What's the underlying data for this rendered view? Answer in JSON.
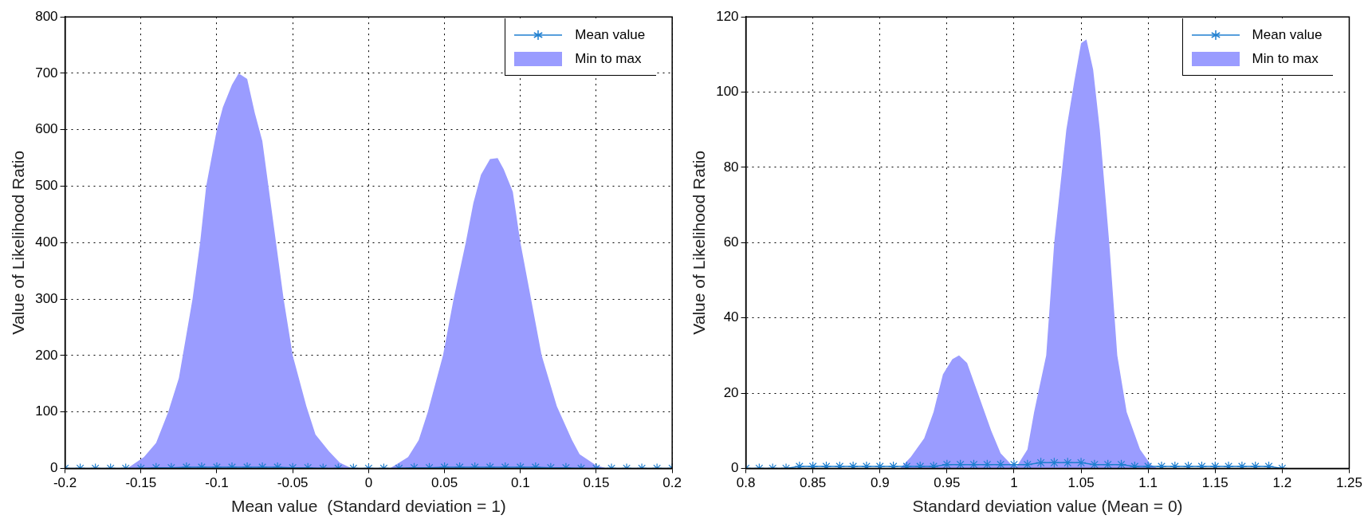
{
  "chart_data": [
    {
      "type": "line",
      "xlabel": "Mean value  (Standard deviation = 1)",
      "ylabel": "Value of Likelihood Ratio",
      "xlim": [
        -0.2,
        0.2
      ],
      "xticks": [
        -0.2,
        -0.15,
        -0.1,
        -0.05,
        0,
        0.05,
        0.1,
        0.15,
        0.2
      ],
      "ylim": [
        0,
        800
      ],
      "yticks": [
        0,
        100,
        200,
        300,
        400,
        500,
        600,
        700,
        800
      ],
      "grid": true,
      "legend": "top right",
      "series": [
        {
          "name": "Mean value",
          "type": "line",
          "marker": "cross",
          "color": "#1f7fd0",
          "x": [
            -0.2,
            -0.19,
            -0.18,
            -0.17,
            -0.16,
            -0.15,
            -0.14,
            -0.13,
            -0.12,
            -0.11,
            -0.1,
            -0.09,
            -0.08,
            -0.07,
            -0.06,
            -0.05,
            -0.04,
            -0.03,
            -0.02,
            -0.01,
            0,
            0.01,
            0.02,
            0.03,
            0.04,
            0.05,
            0.06,
            0.07,
            0.08,
            0.09,
            0.1,
            0.11,
            0.12,
            0.13,
            0.14,
            0.15,
            0.16,
            0.17,
            0.18,
            0.19,
            0.2
          ],
          "values": [
            0,
            0,
            0,
            0,
            0,
            0,
            1,
            1,
            2,
            2,
            2,
            2,
            2,
            2,
            2,
            1,
            1,
            0,
            0,
            0,
            0,
            0,
            0,
            1,
            1,
            2,
            2,
            2,
            2,
            2,
            2,
            2,
            1,
            1,
            0,
            0,
            0,
            0,
            0,
            0,
            0
          ]
        },
        {
          "name": "Min to max",
          "type": "area",
          "color": "#9a9cff",
          "x": [
            -0.2,
            -0.159,
            -0.148,
            -0.14,
            -0.132,
            -0.125,
            -0.116,
            -0.111,
            -0.107,
            -0.1,
            -0.096,
            -0.09,
            -0.0856,
            -0.08,
            -0.075,
            -0.07,
            -0.066,
            -0.061,
            -0.056,
            -0.05,
            -0.041,
            -0.035,
            -0.026,
            -0.019,
            -0.011,
            0.014,
            0.026,
            0.033,
            0.039,
            0.049,
            0.056,
            0.064,
            0.069,
            0.074,
            0.08,
            0.085,
            0.089,
            0.095,
            0.1,
            0.107,
            0.114,
            0.124,
            0.134,
            0.139,
            0.15,
            0.157,
            0.2
          ],
          "values": [
            0,
            0,
            20,
            45,
            100,
            160,
            300,
            400,
            500,
            600,
            640,
            680,
            700,
            690,
            630,
            580,
            500,
            400,
            300,
            200,
            110,
            60,
            30,
            10,
            0,
            0,
            20,
            50,
            100,
            200,
            300,
            400,
            470,
            520,
            548,
            550,
            530,
            490,
            400,
            300,
            200,
            110,
            50,
            25,
            5,
            0,
            0
          ]
        }
      ]
    },
    {
      "type": "line",
      "xlabel": "Standard deviation value (Mean = 0)",
      "ylabel": "Value of Likelihood Ratio",
      "xlim": [
        0.8,
        1.25
      ],
      "xticks": [
        0.8,
        0.85,
        0.9,
        0.95,
        1,
        1.05,
        1.1,
        1.15,
        1.2,
        1.25
      ],
      "ylim": [
        0,
        120
      ],
      "yticks": [
        0,
        20,
        40,
        60,
        80,
        100,
        120
      ],
      "grid": true,
      "legend": "top right",
      "series": [
        {
          "name": "Mean value",
          "type": "line",
          "marker": "cross",
          "color": "#1f7fd0",
          "x": [
            0.8,
            0.81,
            0.82,
            0.83,
            0.84,
            0.85,
            0.86,
            0.87,
            0.88,
            0.89,
            0.9,
            0.91,
            0.92,
            0.93,
            0.94,
            0.95,
            0.96,
            0.97,
            0.98,
            0.99,
            1,
            1.01,
            1.02,
            1.03,
            1.04,
            1.05,
            1.06,
            1.07,
            1.08,
            1.09,
            1.1,
            1.11,
            1.12,
            1.13,
            1.14,
            1.15,
            1.16,
            1.17,
            1.18,
            1.19,
            1.2
          ],
          "values": [
            0,
            0,
            0,
            0,
            0.5,
            0.5,
            0.5,
            0.5,
            0.5,
            0.5,
            0.5,
            0.5,
            0.5,
            0.5,
            0.5,
            1,
            1,
            1,
            1,
            1,
            1,
            1,
            1.5,
            1.5,
            1.5,
            1.5,
            1,
            1,
            1,
            0.5,
            0.5,
            0.5,
            0.5,
            0.5,
            0.5,
            0.5,
            0.5,
            0.5,
            0.5,
            0.5,
            0
          ]
        },
        {
          "name": "Min to max",
          "type": "area",
          "color": "#9a9cff",
          "x": [
            0.8,
            0.915,
            0.923,
            0.933,
            0.94,
            0.947,
            0.954,
            0.959,
            0.965,
            0.973,
            0.983,
            0.99,
            0.998,
            1.002,
            1.01,
            1.015,
            1.024,
            1.03,
            1.039,
            1.045,
            1.05,
            1.054,
            1.059,
            1.064,
            1.071,
            1.077,
            1.084,
            1.094,
            1.102,
            1.107,
            1.2
          ],
          "values": [
            0,
            0,
            3,
            8,
            15,
            25,
            29,
            30,
            28,
            20,
            10,
            4,
            1,
            0.5,
            5,
            15,
            30,
            60,
            90,
            103,
            113,
            114,
            106,
            90,
            60,
            30,
            15,
            5,
            1,
            0,
            0
          ]
        }
      ]
    }
  ]
}
